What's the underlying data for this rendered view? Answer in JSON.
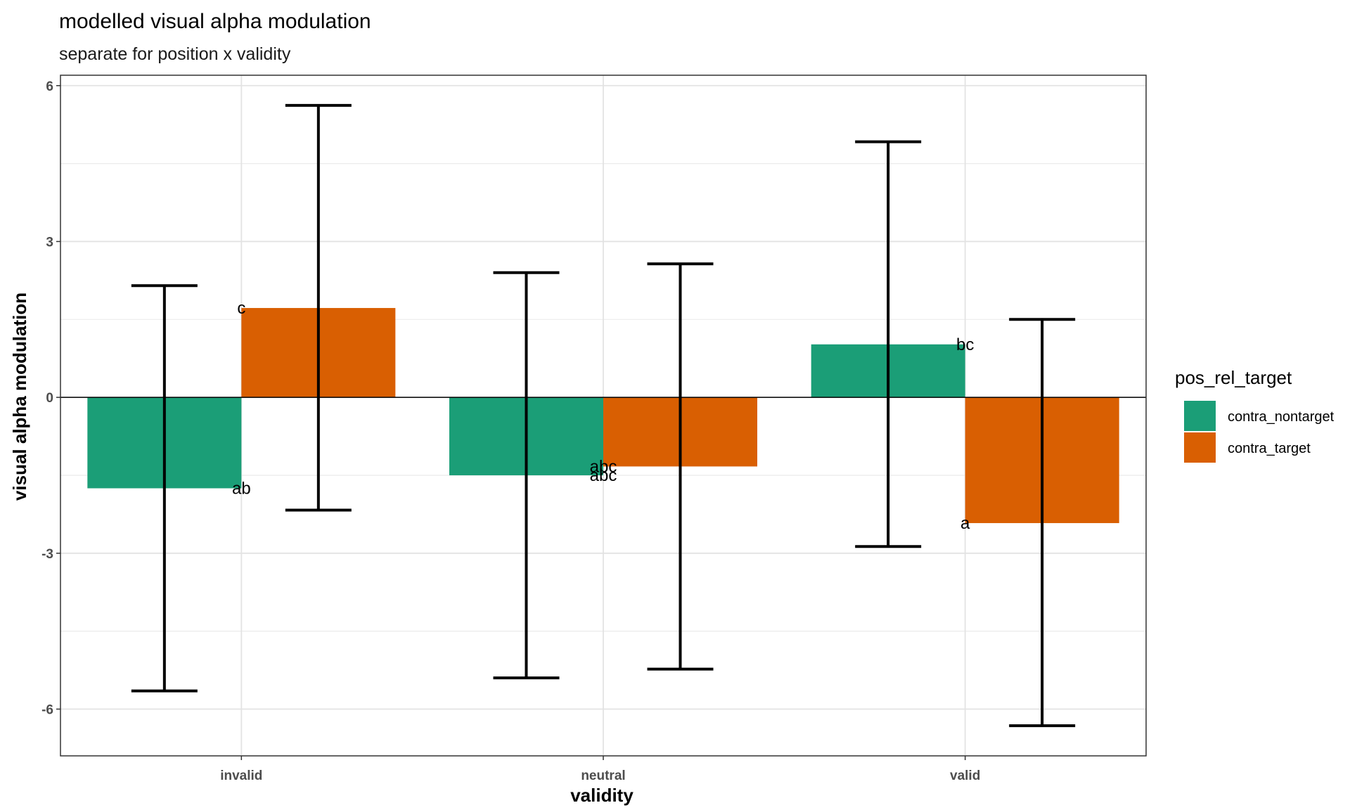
{
  "chart_data": {
    "type": "bar",
    "title": "modelled visual alpha modulation",
    "subtitle": "separate for position x validity",
    "xlabel": "validity",
    "ylabel": "visual alpha modulation",
    "categories": [
      "invalid",
      "neutral",
      "valid"
    ],
    "ylim": [
      -6.9,
      6.2
    ],
    "yticks": [
      6,
      3,
      0,
      -3,
      -6
    ],
    "ytick_labels": [
      "6",
      "3",
      "0",
      "-3",
      "-6"
    ],
    "grid": true,
    "legend_title": "pos_rel_target",
    "legend_position": "right",
    "series": [
      {
        "name": "contra_nontarget",
        "color": "#1b9e77",
        "values": [
          -1.75,
          -1.5,
          1.02
        ],
        "ci_low": [
          -5.65,
          -5.4,
          -2.87
        ],
        "ci_high": [
          2.15,
          2.4,
          4.92
        ],
        "sig_labels": [
          "ab",
          "abc",
          "bc"
        ]
      },
      {
        "name": "contra_target",
        "color": "#d95f02",
        "values": [
          1.72,
          -1.33,
          -2.42
        ],
        "ci_low": [
          -2.17,
          -5.23,
          -6.32
        ],
        "ci_high": [
          5.62,
          2.57,
          1.5
        ],
        "sig_labels": [
          "c",
          "abc",
          "a"
        ]
      }
    ]
  }
}
